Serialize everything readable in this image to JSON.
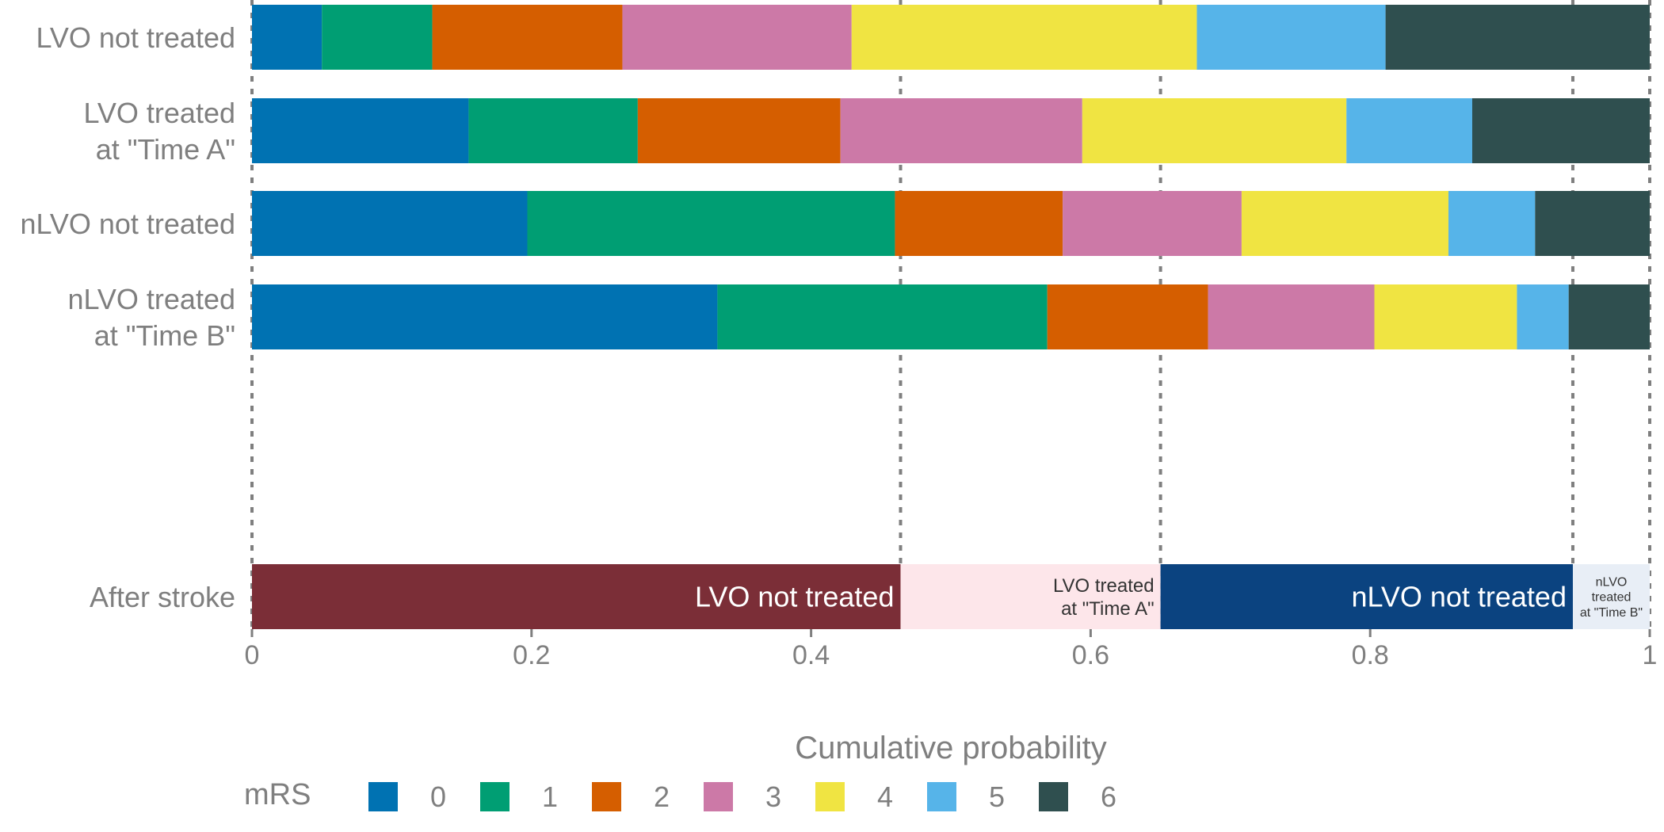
{
  "chart_data": {
    "type": "bar",
    "orientation": "horizontal",
    "stacked": true,
    "xlabel": "Cumulative probability",
    "xlim": [
      0,
      1
    ],
    "xticks": [
      0,
      0.2,
      0.4,
      0.6,
      0.8,
      1
    ],
    "xtick_labels": [
      "0",
      "0.2",
      "0.4",
      "0.6",
      "0.8",
      "1"
    ],
    "categories": [
      "LVO not treated",
      "LVO treated\nat \"Time A\"",
      "nLVO not treated",
      "nLVO treated\nat \"Time B\""
    ],
    "legend": {
      "title": "mRS",
      "placement": "bottom",
      "items": [
        {
          "label": "0",
          "color": "#0072B2"
        },
        {
          "label": "1",
          "color": "#009E73"
        },
        {
          "label": "2",
          "color": "#D55E00"
        },
        {
          "label": "3",
          "color": "#CC79A7"
        },
        {
          "label": "4",
          "color": "#F0E442"
        },
        {
          "label": "5",
          "color": "#56B4E9"
        },
        {
          "label": "6",
          "color": "#2F4F4F"
        }
      ]
    },
    "series": [
      {
        "name": "0",
        "values": [
          0.05,
          0.155,
          0.197,
          0.333
        ]
      },
      {
        "name": "1",
        "values": [
          0.079,
          0.121,
          0.263,
          0.236
        ]
      },
      {
        "name": "2",
        "values": [
          0.136,
          0.145,
          0.12,
          0.115
        ]
      },
      {
        "name": "3",
        "values": [
          0.164,
          0.173,
          0.128,
          0.119
        ]
      },
      {
        "name": "4",
        "values": [
          0.247,
          0.189,
          0.148,
          0.102
        ]
      },
      {
        "name": "5",
        "values": [
          0.135,
          0.09,
          0.062,
          0.037
        ]
      },
      {
        "name": "6",
        "values": [
          0.189,
          0.127,
          0.082,
          0.058
        ]
      }
    ],
    "reference_lines": [
      0,
      0.464,
      0.65,
      0.945,
      1
    ],
    "after_stroke": {
      "label": "After stroke",
      "segments": [
        {
          "label": "LVO not treated",
          "value": 0.464,
          "color": "#7B2E37",
          "text_color": "#ffffff"
        },
        {
          "label": "LVO treated\nat \"Time A\"",
          "value": 0.186,
          "color": "#FDE6EA",
          "text_color": "#333333"
        },
        {
          "label": "nLVO not treated",
          "value": 0.295,
          "color": "#0B4380",
          "text_color": "#ffffff"
        },
        {
          "label": "nLVO\ntreated\nat \"Time B\"",
          "value": 0.055,
          "color": "#E8EEF6",
          "text_color": "#333333"
        }
      ]
    }
  }
}
